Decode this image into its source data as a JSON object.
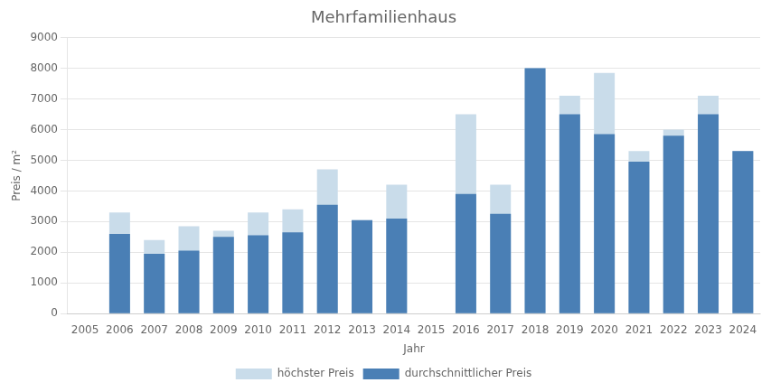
{
  "chart_data": {
    "type": "bar",
    "title": "Mehrfamilienhaus",
    "xlabel": "Jahr",
    "ylabel": "Preis / m²",
    "categories": [
      "2005",
      "2006",
      "2007",
      "2008",
      "2009",
      "2010",
      "2011",
      "2012",
      "2013",
      "2014",
      "2015",
      "2016",
      "2017",
      "2018",
      "2019",
      "2020",
      "2021",
      "2022",
      "2023",
      "2024"
    ],
    "series": [
      {
        "name": "höchster Preis",
        "color": "#c9dcea",
        "values": [
          0,
          3300,
          2400,
          2850,
          2700,
          3300,
          3400,
          4700,
          3050,
          4200,
          0,
          6500,
          4200,
          8000,
          7100,
          7850,
          5300,
          6000,
          7100,
          5300
        ]
      },
      {
        "name": "durchschnittlicher Preis",
        "color": "#4a7fb5",
        "values": [
          0,
          2600,
          1950,
          2050,
          2500,
          2550,
          2650,
          3550,
          3050,
          3100,
          0,
          3900,
          3250,
          8000,
          6500,
          5850,
          4950,
          5800,
          6500,
          5300
        ]
      }
    ],
    "ylim": [
      0,
      9000
    ],
    "yticks": [
      0,
      1000,
      2000,
      3000,
      4000,
      5000,
      6000,
      7000,
      8000,
      9000
    ],
    "grid": true,
    "legend": "bottom"
  }
}
